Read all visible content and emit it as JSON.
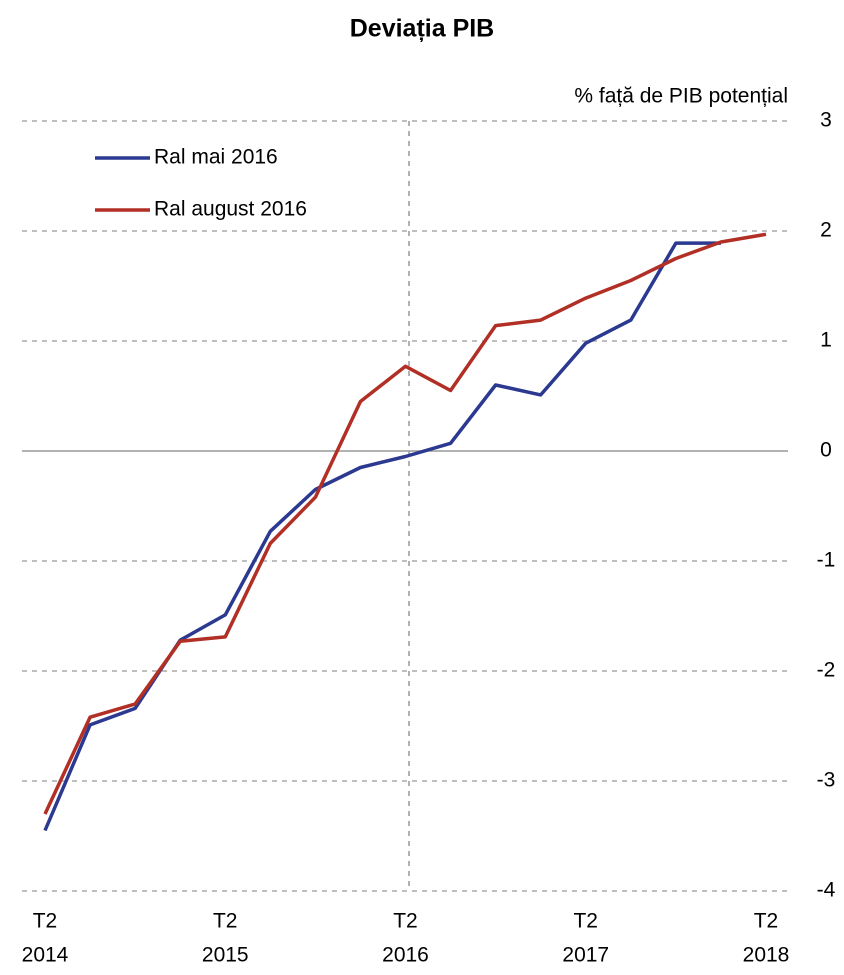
{
  "chart_data": {
    "type": "line",
    "title": "Deviația PIB",
    "y_axis_label": "% față de PIB potențial",
    "categories": [
      [
        "T2",
        "2014"
      ],
      null,
      null,
      null,
      [
        "T2",
        "2015"
      ],
      null,
      null,
      null,
      [
        "T2",
        "2016"
      ],
      null,
      null,
      null,
      [
        "T2",
        "2017"
      ],
      null,
      null,
      null,
      [
        "T2",
        "2018"
      ]
    ],
    "series": [
      {
        "name": "Ral mai 2016",
        "color": "#2b3990",
        "values": [
          -3.45,
          -2.49,
          -2.34,
          -1.72,
          -1.49,
          -0.73,
          -0.35,
          -0.15,
          -0.05,
          0.07,
          0.6,
          0.51,
          0.98,
          1.19,
          1.89,
          1.89,
          null
        ]
      },
      {
        "name": "Ral august 2016",
        "color": "#b22f26",
        "values": [
          -3.3,
          -2.42,
          -2.3,
          -1.73,
          -1.69,
          -0.84,
          -0.42,
          0.45,
          0.77,
          0.55,
          1.14,
          1.19,
          1.39,
          1.55,
          1.75,
          1.9,
          1.97
        ]
      }
    ],
    "ylim": [
      -4,
      3
    ],
    "yticks": [
      -4,
      -3,
      -2,
      -1,
      0,
      1,
      2,
      3
    ],
    "grid": true,
    "legend": "top-left"
  }
}
